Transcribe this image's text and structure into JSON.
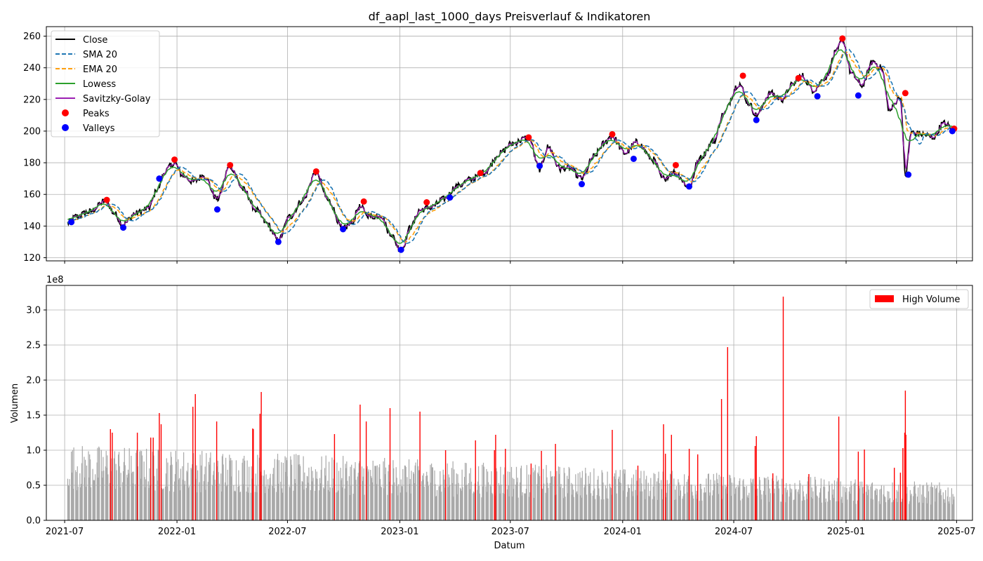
{
  "figure": {
    "title": "df_aapl_last_1000_days Preisverlauf & Indikatoren"
  },
  "chart_data": [
    {
      "type": "line",
      "title": "df_aapl_last_1000_days Preisverlauf & Indikatoren",
      "xlabel": "",
      "ylabel": "",
      "xlim": [
        "2021-06-01",
        "2025-07-27"
      ],
      "ylim": [
        118,
        266
      ],
      "grid": true,
      "legend_position": "top-left",
      "x_ticks": [
        "2021-07",
        "2022-01",
        "2022-07",
        "2023-01",
        "2023-07",
        "2024-01",
        "2024-07",
        "2025-01",
        "2025-07"
      ],
      "y_ticks": [
        120,
        140,
        160,
        180,
        200,
        220,
        240,
        260
      ],
      "colors": {
        "Close": "#000000",
        "SMA 20": "#1f77b4",
        "EMA 20": "#ff9f0e",
        "Lowess": "#2ca02c",
        "Savitzky-Golay": "#9c1fb3",
        "Peaks": "#ff0000",
        "Valleys": "#0000ff"
      },
      "close_anchors": {
        "x": [
          "2021-07-06",
          "2021-07-20",
          "2021-08-10",
          "2021-09-07",
          "2021-09-20",
          "2021-10-05",
          "2021-10-25",
          "2021-11-15",
          "2021-12-01",
          "2021-12-13",
          "2021-12-28",
          "2022-01-10",
          "2022-01-28",
          "2022-02-14",
          "2022-03-08",
          "2022-03-29",
          "2022-04-20",
          "2022-05-11",
          "2022-05-27",
          "2022-06-16",
          "2022-07-05",
          "2022-07-25",
          "2022-08-17",
          "2022-09-06",
          "2022-09-30",
          "2022-10-14",
          "2022-10-27",
          "2022-11-15",
          "2022-12-01",
          "2022-12-15",
          "2023-01-03",
          "2023-01-20",
          "2023-02-02",
          "2023-02-21",
          "2023-03-15",
          "2023-04-03",
          "2023-05-01",
          "2023-05-19",
          "2023-06-15",
          "2023-07-03",
          "2023-07-31",
          "2023-08-18",
          "2023-09-01",
          "2023-09-21",
          "2023-10-04",
          "2023-10-26",
          "2023-11-15",
          "2023-12-01",
          "2023-12-14",
          "2024-01-05",
          "2024-01-24",
          "2024-02-20",
          "2024-03-07",
          "2024-03-26",
          "2024-04-19",
          "2024-05-06",
          "2024-05-31",
          "2024-06-12",
          "2024-07-10",
          "2024-07-25",
          "2024-08-07",
          "2024-08-30",
          "2024-09-18",
          "2024-10-04",
          "2024-10-21",
          "2024-11-08",
          "2024-11-29",
          "2024-12-16",
          "2024-12-26",
          "2025-01-10",
          "2025-01-27",
          "2025-02-14",
          "2025-02-28",
          "2025-03-13",
          "2025-03-31",
          "2025-04-08",
          "2025-04-18",
          "2025-05-07",
          "2025-05-23",
          "2025-06-10",
          "2025-06-27"
        ],
        "y": [
          142,
          146,
          149,
          156,
          148,
          141,
          148,
          151,
          164,
          175,
          180,
          172,
          168,
          172,
          157,
          178,
          163,
          150,
          142,
          131,
          146,
          156,
          174,
          156,
          138,
          142,
          152,
          146,
          147,
          136,
          125,
          140,
          150,
          152,
          157,
          165,
          170,
          174,
          186,
          192,
          196,
          176,
          190,
          176,
          177,
          170,
          184,
          192,
          197,
          186,
          193,
          182,
          170,
          174,
          165,
          183,
          194,
          210,
          230,
          218,
          210,
          224,
          220,
          229,
          235,
          226,
          234,
          250,
          258,
          236,
          229,
          244,
          240,
          213,
          222,
          172,
          199,
          198,
          196,
          205,
          201
        ]
      },
      "series": [
        {
          "name": "Close"
        },
        {
          "name": "SMA 20"
        },
        {
          "name": "EMA 20"
        },
        {
          "name": "Lowess"
        },
        {
          "name": "Savitzky-Golay"
        },
        {
          "name": "Peaks",
          "points": [
            {
              "x": "2021-09-08",
              "y": 156.5
            },
            {
              "x": "2021-12-28",
              "y": 182
            },
            {
              "x": "2022-03-29",
              "y": 178.5
            },
            {
              "x": "2022-08-17",
              "y": 174.5
            },
            {
              "x": "2022-11-03",
              "y": 155.5
            },
            {
              "x": "2023-02-14",
              "y": 155
            },
            {
              "x": "2023-05-13",
              "y": 173.5
            },
            {
              "x": "2023-07-31",
              "y": 196
            },
            {
              "x": "2023-12-15",
              "y": 198
            },
            {
              "x": "2024-03-28",
              "y": 178.5
            },
            {
              "x": "2024-07-16",
              "y": 235
            },
            {
              "x": "2024-10-15",
              "y": 233.5
            },
            {
              "x": "2024-12-26",
              "y": 258.5
            },
            {
              "x": "2025-04-08",
              "y": 224
            },
            {
              "x": "2025-06-27",
              "y": 201.5
            }
          ]
        },
        {
          "name": "Valleys",
          "points": [
            {
              "x": "2021-07-12",
              "y": 142.5
            },
            {
              "x": "2021-10-05",
              "y": 139
            },
            {
              "x": "2021-12-03",
              "y": 170
            },
            {
              "x": "2022-03-08",
              "y": 150.5
            },
            {
              "x": "2022-06-16",
              "y": 130
            },
            {
              "x": "2022-09-30",
              "y": 138
            },
            {
              "x": "2023-01-03",
              "y": 125
            },
            {
              "x": "2023-03-24",
              "y": 158
            },
            {
              "x": "2023-08-18",
              "y": 178
            },
            {
              "x": "2023-10-26",
              "y": 166.5
            },
            {
              "x": "2024-01-19",
              "y": 182.5
            },
            {
              "x": "2024-04-19",
              "y": 165
            },
            {
              "x": "2024-08-07",
              "y": 207
            },
            {
              "x": "2024-11-15",
              "y": 222
            },
            {
              "x": "2025-01-21",
              "y": 222.5
            },
            {
              "x": "2025-04-13",
              "y": 172.5
            },
            {
              "x": "2025-06-24",
              "y": 200
            }
          ]
        }
      ]
    },
    {
      "type": "bar",
      "title": "",
      "xlabel": "Datum",
      "ylabel": "Volumen",
      "y_scale_label": "1e8",
      "ylim": [
        0,
        3.35
      ],
      "grid": true,
      "legend_position": "top-right",
      "x_ticks": [
        "2021-07",
        "2022-01",
        "2022-07",
        "2023-01",
        "2023-07",
        "2024-01",
        "2024-07",
        "2025-01",
        "2025-07"
      ],
      "y_ticks": [
        "0.0",
        "0.5",
        "1.0",
        "1.5",
        "2.0",
        "2.5",
        "3.0"
      ],
      "colors": {
        "normal": "#a9a9a9",
        "High Volume": "#ff0000"
      },
      "series": [
        {
          "name": "High Volume",
          "points": [
            {
              "x": "2021-09-14",
              "y": 1.3
            },
            {
              "x": "2021-09-17",
              "y": 1.25
            },
            {
              "x": "2021-10-28",
              "y": 1.25
            },
            {
              "x": "2021-11-19",
              "y": 1.18
            },
            {
              "x": "2021-11-23",
              "y": 1.18
            },
            {
              "x": "2021-12-03",
              "y": 1.53
            },
            {
              "x": "2021-12-06",
              "y": 1.37
            },
            {
              "x": "2022-01-27",
              "y": 1.62
            },
            {
              "x": "2022-01-31",
              "y": 1.8
            },
            {
              "x": "2022-03-07",
              "y": 1.41
            },
            {
              "x": "2022-05-05",
              "y": 1.31
            },
            {
              "x": "2022-05-06",
              "y": 1.3
            },
            {
              "x": "2022-05-17",
              "y": 1.52
            },
            {
              "x": "2022-05-19",
              "y": 1.83
            },
            {
              "x": "2022-09-16",
              "y": 1.23
            },
            {
              "x": "2022-10-28",
              "y": 1.65
            },
            {
              "x": "2022-11-07",
              "y": 1.41
            },
            {
              "x": "2022-12-16",
              "y": 1.6
            },
            {
              "x": "2023-02-03",
              "y": 1.55
            },
            {
              "x": "2023-03-17",
              "y": 1.0
            },
            {
              "x": "2023-05-05",
              "y": 1.14
            },
            {
              "x": "2023-06-05",
              "y": 1.0
            },
            {
              "x": "2023-06-07",
              "y": 1.22
            },
            {
              "x": "2023-06-23",
              "y": 1.02
            },
            {
              "x": "2023-08-04",
              "y": 0.81
            },
            {
              "x": "2023-08-21",
              "y": 0.99
            },
            {
              "x": "2023-09-13",
              "y": 1.09
            },
            {
              "x": "2023-12-15",
              "y": 1.29
            },
            {
              "x": "2024-01-26",
              "y": 0.78
            },
            {
              "x": "2024-03-08",
              "y": 1.37
            },
            {
              "x": "2024-03-11",
              "y": 0.95
            },
            {
              "x": "2024-03-21",
              "y": 1.22
            },
            {
              "x": "2024-04-19",
              "y": 1.02
            },
            {
              "x": "2024-05-03",
              "y": 0.94
            },
            {
              "x": "2024-06-11",
              "y": 1.73
            },
            {
              "x": "2024-06-21",
              "y": 2.47
            },
            {
              "x": "2024-08-05",
              "y": 1.06
            },
            {
              "x": "2024-08-07",
              "y": 1.2
            },
            {
              "x": "2024-09-03",
              "y": 0.67
            },
            {
              "x": "2024-09-20",
              "y": 3.19
            },
            {
              "x": "2024-11-01",
              "y": 0.66
            },
            {
              "x": "2024-12-20",
              "y": 1.48
            },
            {
              "x": "2025-01-21",
              "y": 0.98
            },
            {
              "x": "2025-01-31",
              "y": 1.01
            },
            {
              "x": "2025-03-21",
              "y": 0.75
            },
            {
              "x": "2025-03-31",
              "y": 0.68
            },
            {
              "x": "2025-04-04",
              "y": 1.03
            },
            {
              "x": "2025-04-07",
              "y": 1.25
            },
            {
              "x": "2025-04-08",
              "y": 1.85
            },
            {
              "x": "2025-04-09",
              "y": 1.22
            }
          ]
        }
      ]
    }
  ],
  "legend_top": {
    "items": [
      "Close",
      "SMA 20",
      "EMA 20",
      "Lowess",
      "Savitzky-Golay",
      "Peaks",
      "Valleys"
    ]
  },
  "legend_bottom": {
    "items": [
      "High Volume"
    ]
  }
}
